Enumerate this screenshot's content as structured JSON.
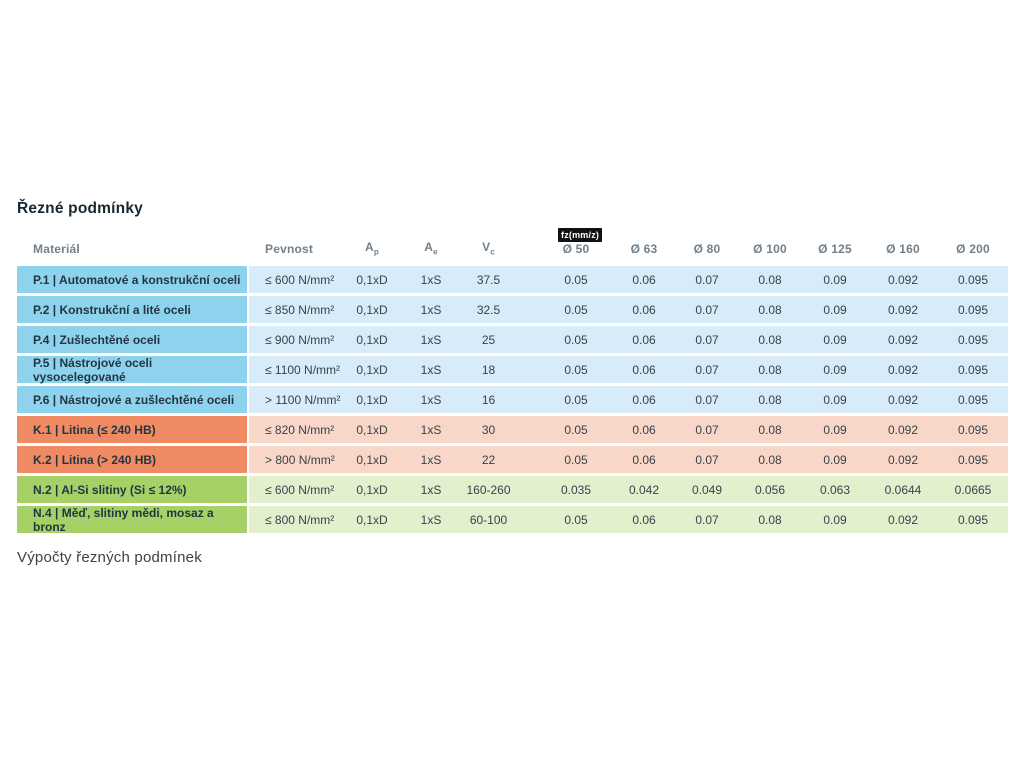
{
  "page": {
    "title": "Řezné podmínky",
    "bottom_link": "Výpočty řezných podmínek"
  },
  "table": {
    "fz_badge": "fz(mm/z)",
    "headers": {
      "material": "Materiál",
      "pevnost": "Pevnost",
      "ap": {
        "base": "A",
        "sub": "p"
      },
      "ae": {
        "base": "A",
        "sub": "e"
      },
      "vc": {
        "base": "V",
        "sub": "c"
      },
      "diameters": [
        "Ø 50",
        "Ø 63",
        "Ø 80",
        "Ø 100",
        "Ø 125",
        "Ø 160",
        "Ø 200"
      ]
    },
    "rows": [
      {
        "group": "P",
        "material": "P.1 | Automatové a konstrukční oceli",
        "pevnost": "≤ 600 N/mm²",
        "ap": "0,1xD",
        "ae": "1xS",
        "vc": "37.5",
        "fz": [
          "0.05",
          "0.06",
          "0.07",
          "0.08",
          "0.09",
          "0.092",
          "0.095"
        ]
      },
      {
        "group": "P",
        "material": "P.2 | Konstrukční a lité oceli",
        "pevnost": "≤ 850 N/mm²",
        "ap": "0,1xD",
        "ae": "1xS",
        "vc": "32.5",
        "fz": [
          "0.05",
          "0.06",
          "0.07",
          "0.08",
          "0.09",
          "0.092",
          "0.095"
        ]
      },
      {
        "group": "P",
        "material": "P.4 | Zušlechtěné oceli",
        "pevnost": "≤ 900 N/mm²",
        "ap": "0,1xD",
        "ae": "1xS",
        "vc": "25",
        "fz": [
          "0.05",
          "0.06",
          "0.07",
          "0.08",
          "0.09",
          "0.092",
          "0.095"
        ]
      },
      {
        "group": "P",
        "material": "P.5 | Nástrojové oceli vysocelegované",
        "pevnost": "≤ 1100 N/mm²",
        "ap": "0,1xD",
        "ae": "1xS",
        "vc": "18",
        "fz": [
          "0.05",
          "0.06",
          "0.07",
          "0.08",
          "0.09",
          "0.092",
          "0.095"
        ]
      },
      {
        "group": "P",
        "material": "P.6 | Nástrojové a zušlechtěné oceli",
        "pevnost": "> 1100 N/mm²",
        "ap": "0,1xD",
        "ae": "1xS",
        "vc": "16",
        "fz": [
          "0.05",
          "0.06",
          "0.07",
          "0.08",
          "0.09",
          "0.092",
          "0.095"
        ]
      },
      {
        "group": "K",
        "material": "K.1 | Litina (≤ 240 HB)",
        "pevnost": "≤ 820 N/mm²",
        "ap": "0,1xD",
        "ae": "1xS",
        "vc": "30",
        "fz": [
          "0.05",
          "0.06",
          "0.07",
          "0.08",
          "0.09",
          "0.092",
          "0.095"
        ]
      },
      {
        "group": "K",
        "material": "K.2 | Litina (> 240 HB)",
        "pevnost": "> 800 N/mm²",
        "ap": "0,1xD",
        "ae": "1xS",
        "vc": "22",
        "fz": [
          "0.05",
          "0.06",
          "0.07",
          "0.08",
          "0.09",
          "0.092",
          "0.095"
        ]
      },
      {
        "group": "N",
        "material": "N.2 | Al-Si slitiny (Si ≤ 12%)",
        "pevnost": "≤ 600 N/mm²",
        "ap": "0,1xD",
        "ae": "1xS",
        "vc": "160-260",
        "fz": [
          "0.035",
          "0.042",
          "0.049",
          "0.056",
          "0.063",
          "0.0644",
          "0.0665"
        ]
      },
      {
        "group": "N",
        "material": "N.4 | Měď, slitiny mědi, mosaz a bronz",
        "pevnost": "≤ 800 N/mm²",
        "ap": "0,1xD",
        "ae": "1xS",
        "vc": "60-100",
        "fz": [
          "0.05",
          "0.06",
          "0.07",
          "0.08",
          "0.09",
          "0.092",
          "0.095"
        ]
      }
    ],
    "colors": {
      "steel_material": "#8ed3ee",
      "steel_row": "#d7ecf8",
      "cast_iron_material": "#ef8a63",
      "cast_iron_row": "#f9d7c8",
      "nonferrous_material": "#a6d167",
      "nonferrous_row": "#e3f0cd",
      "badge_bg": "#111111",
      "badge_text": "#ffffff"
    }
  }
}
